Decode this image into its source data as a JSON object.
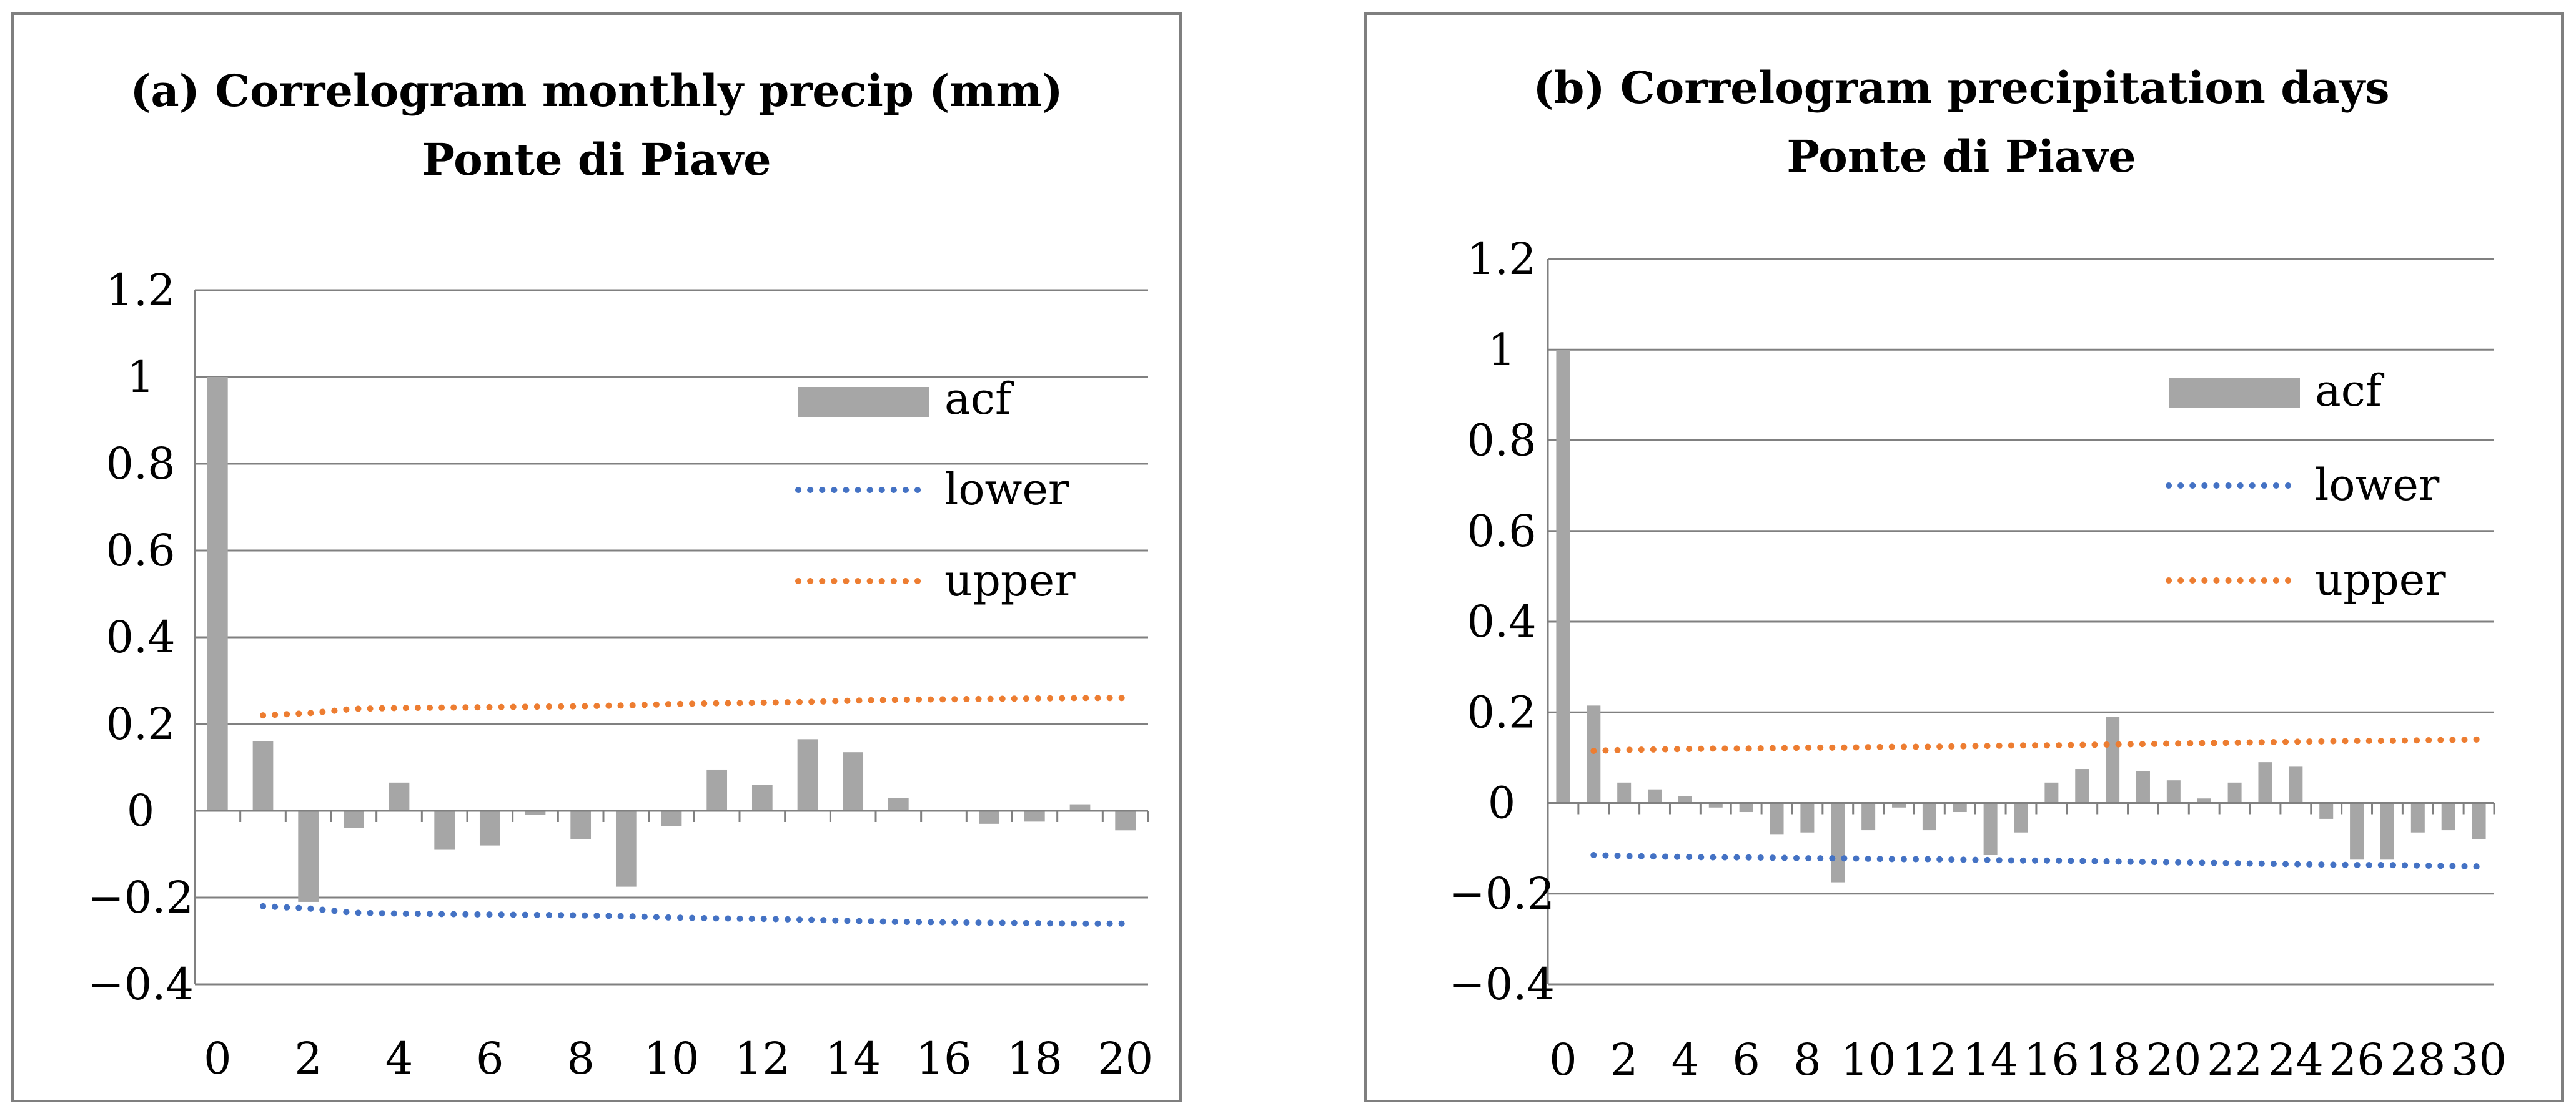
{
  "colors": {
    "bar": "#a6a6a6",
    "lower": "#4472c4",
    "upper": "#ed7d31",
    "grid": "#808080",
    "frame": "#7f7f7f"
  },
  "chart_data": [
    {
      "type": "bar",
      "title_line1": "(a) Correlogram monthly precip (mm)",
      "title_line2": "Ponte di Piave",
      "xlabel": "",
      "ylabel": "",
      "ylim": [
        -0.4,
        1.2
      ],
      "y_ticks": [
        -0.4,
        -0.2,
        0,
        0.2,
        0.4,
        0.6,
        0.8,
        1,
        1.2
      ],
      "y_tick_labels": [
        "−0.4",
        "−0.2",
        "0",
        "0.2",
        "0.4",
        "0.6",
        "0.8",
        "1",
        "1.2"
      ],
      "x_tick_labels": [
        "0",
        "2",
        "4",
        "6",
        "8",
        "10",
        "12",
        "14",
        "16",
        "18",
        "20"
      ],
      "lags": [
        0,
        1,
        2,
        3,
        4,
        5,
        6,
        7,
        8,
        9,
        10,
        11,
        12,
        13,
        14,
        15,
        16,
        17,
        18,
        19,
        20
      ],
      "series": [
        {
          "name": "acf",
          "values": [
            1.0,
            0.16,
            -0.21,
            -0.04,
            0.065,
            -0.09,
            -0.08,
            -0.01,
            -0.065,
            -0.175,
            -0.035,
            0.095,
            0.06,
            0.165,
            0.135,
            0.03,
            0.0,
            -0.03,
            -0.025,
            0.015,
            -0.045
          ]
        },
        {
          "name": "lower",
          "values": [
            null,
            -0.22,
            -0.225,
            -0.235,
            -0.237,
            -0.238,
            -0.239,
            -0.24,
            -0.241,
            -0.243,
            -0.246,
            -0.248,
            -0.249,
            -0.251,
            -0.254,
            -0.256,
            -0.257,
            -0.258,
            -0.259,
            -0.26,
            -0.26
          ]
        },
        {
          "name": "upper",
          "values": [
            null,
            0.22,
            0.225,
            0.235,
            0.237,
            0.238,
            0.239,
            0.24,
            0.241,
            0.243,
            0.246,
            0.248,
            0.249,
            0.251,
            0.254,
            0.256,
            0.257,
            0.258,
            0.259,
            0.26,
            0.26
          ]
        }
      ],
      "legend": [
        "acf",
        "lower",
        "upper"
      ],
      "legend_position": "upper-right"
    },
    {
      "type": "bar",
      "title_line1": "(b) Correlogram precipitation days",
      "title_line2": "Ponte di Piave",
      "xlabel": "",
      "ylabel": "",
      "ylim": [
        -0.4,
        1.2
      ],
      "y_ticks": [
        -0.4,
        -0.2,
        0,
        0.2,
        0.4,
        0.6,
        0.8,
        1,
        1.2
      ],
      "y_tick_labels": [
        "−0.4",
        "−0.2",
        "0",
        "0.2",
        "0.4",
        "0.6",
        "0.8",
        "1",
        "1.2"
      ],
      "x_tick_labels": [
        "0",
        "2",
        "4",
        "6",
        "8",
        "10",
        "12",
        "14",
        "16",
        "18",
        "20",
        "22",
        "24",
        "26",
        "28",
        "30"
      ],
      "lags": [
        0,
        1,
        2,
        3,
        4,
        5,
        6,
        7,
        8,
        9,
        10,
        11,
        12,
        13,
        14,
        15,
        16,
        17,
        18,
        19,
        20,
        21,
        22,
        23,
        24,
        25,
        26,
        27,
        28,
        29,
        30
      ],
      "series": [
        {
          "name": "acf",
          "values": [
            1.0,
            0.215,
            0.045,
            0.03,
            0.015,
            -0.01,
            -0.02,
            -0.07,
            -0.065,
            -0.175,
            -0.06,
            -0.01,
            -0.06,
            -0.02,
            -0.115,
            -0.065,
            0.045,
            0.075,
            0.19,
            0.07,
            0.05,
            0.01,
            0.045,
            0.09,
            0.08,
            -0.035,
            -0.125,
            -0.125,
            -0.065,
            -0.06,
            -0.08
          ]
        },
        {
          "name": "lower",
          "values": [
            null,
            -0.115,
            -0.117,
            -0.118,
            -0.119,
            -0.12,
            -0.12,
            -0.121,
            -0.122,
            -0.122,
            -0.123,
            -0.124,
            -0.124,
            -0.125,
            -0.126,
            -0.127,
            -0.127,
            -0.128,
            -0.129,
            -0.13,
            -0.131,
            -0.132,
            -0.133,
            -0.134,
            -0.135,
            -0.136,
            -0.137,
            -0.137,
            -0.138,
            -0.139,
            -0.14
          ]
        },
        {
          "name": "upper",
          "values": [
            null,
            0.115,
            0.117,
            0.118,
            0.119,
            0.12,
            0.12,
            0.121,
            0.122,
            0.122,
            0.123,
            0.124,
            0.124,
            0.125,
            0.126,
            0.127,
            0.127,
            0.128,
            0.129,
            0.13,
            0.131,
            0.132,
            0.133,
            0.134,
            0.135,
            0.136,
            0.137,
            0.137,
            0.138,
            0.139,
            0.14
          ]
        }
      ],
      "legend": [
        "acf",
        "lower",
        "upper"
      ],
      "legend_position": "upper-right"
    }
  ]
}
